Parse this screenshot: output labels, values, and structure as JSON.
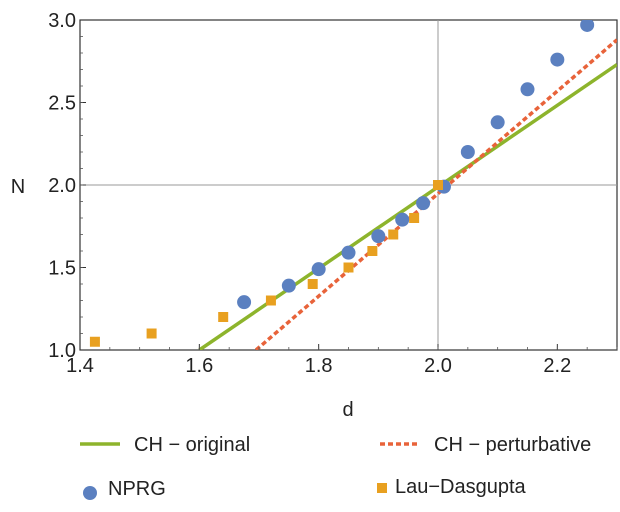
{
  "chart_data": {
    "type": "scatter",
    "title": "",
    "xlabel": "d",
    "ylabel": "N",
    "xlim": [
      1.4,
      2.3
    ],
    "ylim": [
      1.0,
      3.0
    ],
    "xticks": [
      {
        "value": 1.4,
        "label": "1.4"
      },
      {
        "value": 1.6,
        "label": "1.6"
      },
      {
        "value": 1.8,
        "label": "1.8"
      },
      {
        "value": 2.0,
        "label": "2.0"
      },
      {
        "value": 2.2,
        "label": "2.2"
      }
    ],
    "yticks": [
      {
        "value": 1.0,
        "label": "1.0"
      },
      {
        "value": 1.5,
        "label": "1.5"
      },
      {
        "value": 2.0,
        "label": "2.0"
      },
      {
        "value": 2.5,
        "label": "2.5"
      },
      {
        "value": 3.0,
        "label": "3.0"
      }
    ],
    "reference_lines": {
      "x": 2.0,
      "y": 2.0
    },
    "grid": false,
    "legend_position": "bottom",
    "series": [
      {
        "name": "CH − original",
        "kind": "line",
        "style": "solid",
        "color": "#8DB42C",
        "x": [
          1.6,
          2.3
        ],
        "y": [
          1.0,
          2.73
        ]
      },
      {
        "name": "CH − perturbative",
        "kind": "line",
        "style": "dotted",
        "color": "#E8633A",
        "x": [
          1.695,
          2.3
        ],
        "y": [
          1.0,
          2.88
        ]
      },
      {
        "name": "NPRG",
        "kind": "scatter",
        "marker": "circle",
        "color": "#5B80C0",
        "x": [
          1.675,
          1.75,
          1.8,
          1.85,
          1.9,
          1.94,
          1.975,
          2.01,
          2.05,
          2.1,
          2.15,
          2.2,
          2.25
        ],
        "y": [
          1.29,
          1.39,
          1.49,
          1.59,
          1.69,
          1.79,
          1.89,
          1.99,
          2.2,
          2.38,
          2.58,
          2.76,
          2.97
        ]
      },
      {
        "name": "Lau−Dasgupta",
        "kind": "scatter",
        "marker": "square",
        "color": "#E8A020",
        "x": [
          1.425,
          1.52,
          1.64,
          1.72,
          1.79,
          1.85,
          1.89,
          1.925,
          1.96,
          2.0
        ],
        "y": [
          1.05,
          1.1,
          1.2,
          1.3,
          1.4,
          1.5,
          1.6,
          1.7,
          1.8,
          2.0
        ]
      }
    ]
  }
}
